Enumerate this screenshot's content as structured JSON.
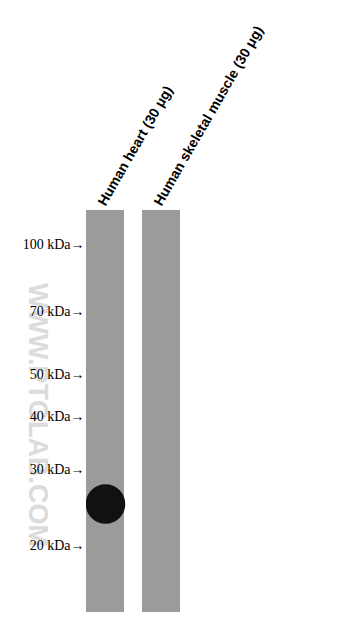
{
  "chart_data": {
    "type": "western_blot",
    "categories": [
      "Human heart (30 μg)",
      "Human skeletal muscle (30 μg)"
    ],
    "bands": [
      {
        "lane": "Human heart (30 μg)",
        "kda": 25
      }
    ],
    "ylim": [
      14,
      120
    ],
    "yticks": [
      {
        "value": 100,
        "label": "100 kDa→"
      },
      {
        "value": 70,
        "label": "70 kDa→"
      },
      {
        "value": 50,
        "label": "50 kDa→"
      },
      {
        "value": 40,
        "label": "40 kDa→"
      },
      {
        "value": 30,
        "label": "30 kDa→"
      },
      {
        "value": 20,
        "label": "20 kDa→"
      }
    ],
    "log": "y",
    "watermark": "WWW.PTGLAB.COM"
  }
}
